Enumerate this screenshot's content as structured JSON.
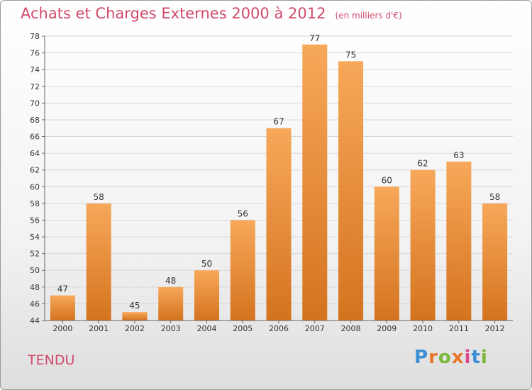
{
  "header": {
    "title": "Achats et Charges Externes 2000 à 2012",
    "unit": "(en milliers d'€)"
  },
  "footer": {
    "place": "TENDU",
    "logo": {
      "text": "Proxiti",
      "colors": [
        "#3a8fd6",
        "#e8762a",
        "#7ab83a",
        "#e8762a",
        "#d84a8c",
        "#3a8fd6",
        "#7ab83a"
      ]
    }
  },
  "colors": {
    "bar_top": "#f7a85a",
    "bar_bottom": "#d4731e",
    "grid": "#d8d8d8",
    "title": "#d24a6a"
  },
  "chart_data": {
    "type": "bar",
    "title": "Achats et Charges Externes 2000 à 2012",
    "xlabel": "",
    "ylabel": "",
    "categories": [
      "2000",
      "2001",
      "2002",
      "2003",
      "2004",
      "2005",
      "2006",
      "2007",
      "2008",
      "2009",
      "2010",
      "2011",
      "2012"
    ],
    "values": [
      47,
      58,
      45,
      48,
      50,
      56,
      67,
      77,
      75,
      60,
      62,
      63,
      58
    ],
    "ylim": [
      44,
      78
    ],
    "yticks": [
      44,
      46,
      48,
      50,
      52,
      54,
      56,
      58,
      60,
      62,
      64,
      66,
      68,
      70,
      72,
      74,
      76,
      78
    ],
    "grid": true,
    "legend": "none"
  }
}
